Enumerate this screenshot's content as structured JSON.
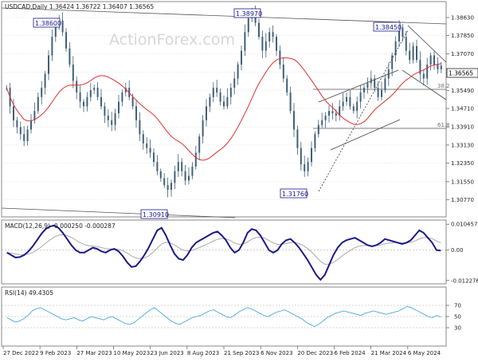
{
  "colors": {
    "candle": "#3f5f78",
    "ma": "#e03030",
    "trend": "#3a3a3a",
    "macd": "#1a1a8a",
    "signal": "#aaaaaa",
    "rsi": "#4aa8d8",
    "grid": "#c8c8c8",
    "label_border": "#1a1a8a",
    "current_box": "#ffffff"
  },
  "chart_data": [
    {
      "type": "candlestick",
      "title": "USDCAD,Daily  1.36424 1.36722 1.36407 1.36565",
      "watermark": "ActionForex.com",
      "ylim": [
        1.301,
        1.3925
      ],
      "y_ticks": [
        "1.38630",
        "1.37850",
        "1.37070",
        "1.36270",
        "1.35490",
        "1.34710",
        "1.33910",
        "1.33130",
        "1.32350",
        "1.31550",
        "1.30770"
      ],
      "current_price": "1.36565",
      "x_ticks": [
        "27 Dec 2022",
        "9 Feb 2023",
        "27 Mar 2023",
        "10 May 2023",
        "23 Jun 2023",
        "8 Aug 2023",
        "21 Sep 2023",
        "6 Nov 2023",
        "20 Dec 2023",
        "6 Feb 2024",
        "21 Mar 2024",
        "6 May 2024"
      ],
      "series": [
        {
          "type": "candlestick",
          "close": [
            1.356,
            1.348,
            1.342,
            1.339,
            1.336,
            1.333,
            1.338,
            1.342,
            1.346,
            1.352,
            1.356,
            1.362,
            1.37,
            1.378,
            1.383,
            1.385,
            1.38,
            1.373,
            1.366,
            1.359,
            1.354,
            1.35,
            1.348,
            1.352,
            1.355,
            1.356,
            1.352,
            1.348,
            1.344,
            1.342,
            1.34,
            1.345,
            1.35,
            1.354,
            1.356,
            1.352,
            1.348,
            1.342,
            1.336,
            1.332,
            1.33,
            1.328,
            1.324,
            1.32,
            1.317,
            1.314,
            1.312,
            1.315,
            1.32,
            1.324,
            1.32,
            1.316,
            1.318,
            1.322,
            1.328,
            1.335,
            1.342,
            1.348,
            1.352,
            1.356,
            1.354,
            1.35,
            1.348,
            1.352,
            1.356,
            1.36,
            1.366,
            1.372,
            1.38,
            1.386,
            1.388,
            1.384,
            1.378,
            1.372,
            1.376,
            1.38,
            1.378,
            1.372,
            1.366,
            1.36,
            1.354,
            1.346,
            1.338,
            1.33,
            1.323,
            1.32,
            1.324,
            1.33,
            1.336,
            1.34,
            1.342,
            1.344,
            1.346,
            1.345,
            1.344,
            1.348,
            1.35,
            1.352,
            1.348,
            1.346,
            1.35,
            1.354,
            1.356,
            1.358,
            1.36,
            1.356,
            1.352,
            1.355,
            1.36,
            1.364,
            1.37,
            1.376,
            1.382,
            1.378,
            1.372,
            1.368,
            1.374,
            1.368,
            1.362,
            1.36,
            1.366,
            1.37,
            1.366,
            1.364,
            1.3656
          ]
        },
        {
          "name": "MA",
          "type": "line",
          "color": "ma"
        }
      ],
      "annotations": [
        {
          "text": "1.38600",
          "x_index": 15,
          "price": 1.386
        },
        {
          "text": "1.38970",
          "x_index": 70,
          "price": 1.3897
        },
        {
          "text": "1.38450",
          "x_index": 112,
          "price": 1.3845
        },
        {
          "text": "1.31760",
          "x_index": 85,
          "price": 1.3176
        },
        {
          "text": "1.30910",
          "x_index": 46,
          "price": 1.3091
        },
        {
          "text": "38.2",
          "price": 1.358
        },
        {
          "text": "61.8",
          "price": 1.345
        }
      ]
    },
    {
      "type": "line",
      "title": "MACD(12,26,9) -0.000250 -0.000287",
      "ylim": [
        -0.013,
        0.0115
      ],
      "y_ticks": [
        "0.010457",
        "0.00",
        "-0.012276"
      ],
      "series": [
        {
          "name": "MACD",
          "color": "macd",
          "values": [
            -0.001,
            -0.002,
            -0.003,
            -0.0028,
            -0.002,
            -0.0005,
            0.0015,
            0.004,
            0.0065,
            0.0085,
            0.0095,
            0.01,
            0.009,
            0.007,
            0.0045,
            0.002,
            0.0,
            -0.001,
            -0.001,
            0.0,
            0.001,
            0.0005,
            -0.0005,
            -0.001,
            0.0,
            0.0005,
            -0.0005,
            -0.0025,
            -0.005,
            -0.0068,
            -0.0065,
            -0.0045,
            -0.002,
            0.001,
            0.0045,
            0.008,
            0.009,
            0.006,
            0.002,
            -0.0015,
            -0.0035,
            -0.004,
            -0.002,
            0.001,
            0.003,
            0.004,
            0.005,
            0.006,
            0.007,
            0.0075,
            0.006,
            0.004,
            0.001,
            -0.001,
            0.0,
            0.003,
            0.007,
            0.0085,
            0.008,
            0.006,
            0.003,
            0.0,
            -0.001,
            0.0,
            0.0025,
            0.004,
            0.0045,
            0.003,
            0.001,
            -0.0015,
            -0.004,
            -0.007,
            -0.01,
            -0.012,
            -0.01,
            -0.006,
            -0.002,
            0.001,
            0.003,
            0.004,
            0.0045,
            0.005,
            0.004,
            0.003,
            0.002,
            0.0015,
            0.002,
            0.003,
            0.0045,
            0.004,
            0.0035,
            0.003,
            0.0025,
            0.003,
            0.004,
            0.006,
            0.008,
            0.007,
            0.005,
            0.003,
            0.0,
            -0.0002
          ]
        },
        {
          "name": "Signal",
          "color": "signal"
        }
      ]
    },
    {
      "type": "line",
      "title": "RSI(14) 49.4305",
      "ylim": [
        0,
        100
      ],
      "y_ticks": [
        "70",
        "50",
        "30"
      ],
      "series": [
        {
          "name": "RSI",
          "color": "rsi",
          "values": [
            48,
            44,
            40,
            42,
            46,
            52,
            60,
            64,
            66,
            62,
            58,
            54,
            50,
            46,
            44,
            46,
            48,
            44,
            42,
            46,
            50,
            48,
            46,
            44,
            48,
            50,
            46,
            42,
            38,
            36,
            38,
            44,
            50,
            56,
            62,
            66,
            60,
            54,
            48,
            42,
            38,
            36,
            40,
            44,
            48,
            50,
            52,
            56,
            60,
            62,
            58,
            54,
            50,
            48,
            52,
            58,
            62,
            66,
            64,
            60,
            56,
            52,
            50,
            54,
            58,
            60,
            62,
            58,
            54,
            50,
            46,
            40,
            36,
            32,
            36,
            42,
            48,
            52,
            56,
            58,
            60,
            58,
            56,
            54,
            52,
            56,
            58,
            60,
            58,
            56,
            54,
            56,
            58,
            60,
            64,
            68,
            66,
            62,
            58,
            54,
            50,
            48,
            52,
            49
          ]
        }
      ]
    }
  ]
}
